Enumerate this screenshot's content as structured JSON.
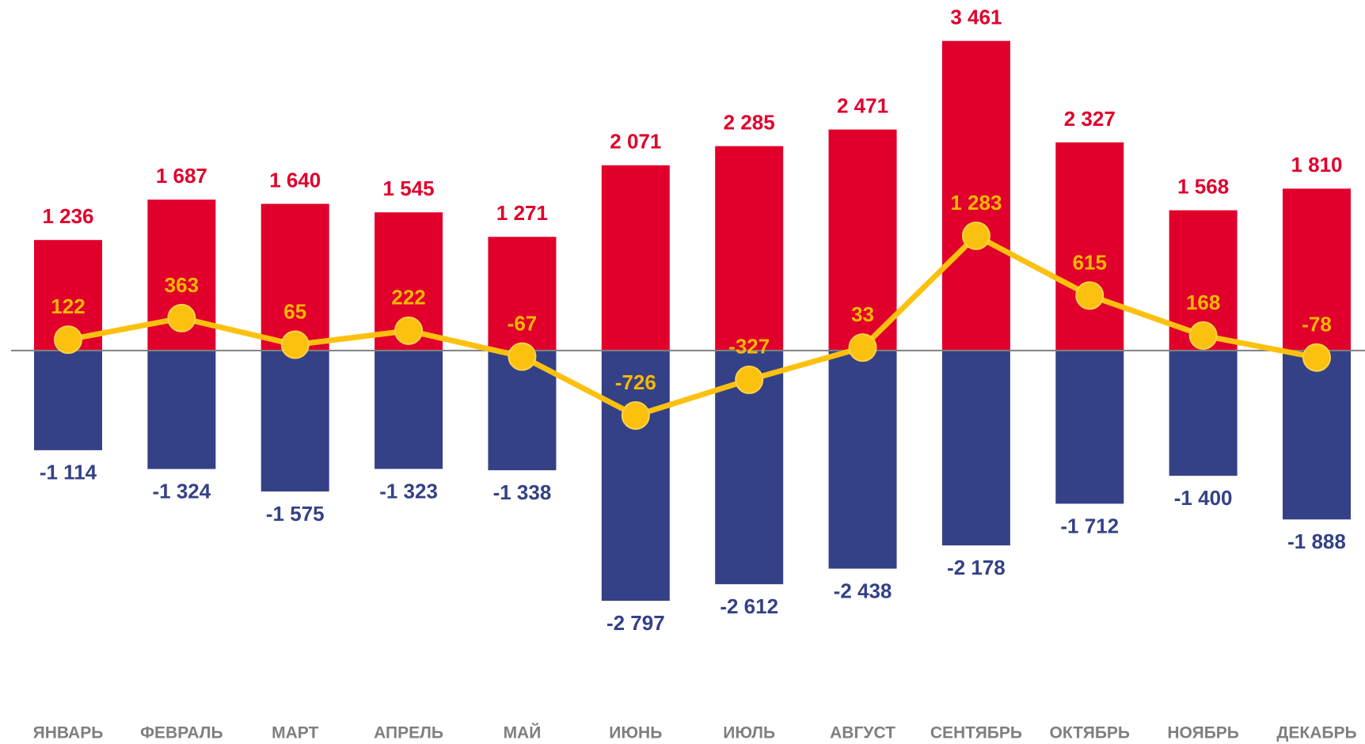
{
  "chart_data": {
    "type": "bar",
    "categories": [
      "ЯНВАРЬ",
      "ФЕВРАЛЬ",
      "МАРТ",
      "АПРЕЛЬ",
      "МАЙ",
      "ИЮНЬ",
      "ИЮЛЬ",
      "АВГУСТ",
      "СЕНТЯБРЬ",
      "ОКТЯБРЬ",
      "НОЯБРЬ",
      "ДЕКАБРЬ"
    ],
    "ylim": [
      -3000,
      3600
    ],
    "series": [
      {
        "type": "bar",
        "color": "#e0002b",
        "label_color": "#e0002b",
        "values": [
          1236,
          1687,
          1640,
          1545,
          1271,
          2071,
          2285,
          2471,
          3461,
          2327,
          1568,
          1810
        ],
        "value_labels": [
          "1 236",
          "1 687",
          "1 640",
          "1 545",
          "1 271",
          "2 071",
          "2 285",
          "2 471",
          "3 461",
          "2 327",
          "1 568",
          "1 810"
        ]
      },
      {
        "type": "bar",
        "color": "#344186",
        "label_color": "#344186",
        "values": [
          -1114,
          -1324,
          -1575,
          -1323,
          -1338,
          -2797,
          -2612,
          -2438,
          -2178,
          -1712,
          -1400,
          -1888
        ],
        "value_labels": [
          "-1 114",
          "-1 324",
          "-1 575",
          "-1 323",
          "-1 338",
          "-2 797",
          "-2 612",
          "-2 438",
          "-2 178",
          "-1 712",
          "-1 400",
          "-1 888"
        ]
      },
      {
        "type": "line",
        "color": "#fcc00f",
        "label_color": "#f7b900",
        "values": [
          122,
          363,
          65,
          222,
          -67,
          -726,
          -327,
          33,
          1283,
          615,
          168,
          -78
        ],
        "value_labels": [
          "122",
          "363",
          "65",
          "222",
          "-67",
          "-726",
          "-327",
          "33",
          "1 283",
          "615",
          "168",
          "-78"
        ]
      }
    ]
  }
}
